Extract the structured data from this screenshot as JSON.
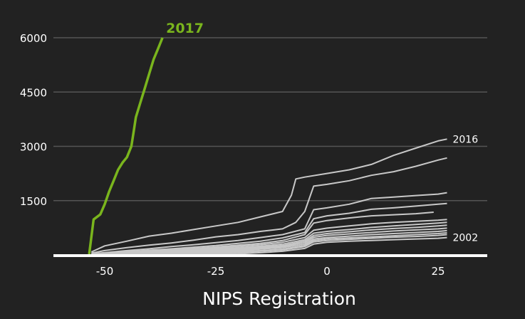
{
  "chart_data": {
    "type": "line",
    "title": "",
    "xlabel": "NIPS Registration",
    "ylabel": "",
    "xlim": [
      -63,
      36
    ],
    "ylim": [
      0,
      6200
    ],
    "x_ticks": [
      -50,
      -25,
      0,
      25
    ],
    "y_ticks": [
      1500,
      3000,
      4500,
      6000
    ],
    "x_tick_labels": [
      "-50",
      "-25",
      "0",
      "25"
    ],
    "y_tick_labels": [
      "1500",
      "3000",
      "4500",
      "6000"
    ],
    "grid": "horizontal",
    "legend": "none",
    "colors": {
      "background": "#222222",
      "highlight": "#7ab51d",
      "series": "#c8c8c8",
      "grid": "#555555",
      "baseline": "#ffffff"
    },
    "highlight_series": {
      "name": "2017",
      "color": "#7ab51d",
      "x": [
        -53.5,
        -52.5,
        -51,
        -50,
        -49,
        -48,
        -47,
        -46,
        -45,
        -44,
        -43.5,
        -43,
        -42,
        -41,
        -40,
        -39,
        -38,
        -37
      ],
      "y": [
        20,
        980,
        1120,
        1400,
        1750,
        2050,
        2350,
        2550,
        2700,
        3000,
        3400,
        3800,
        4200,
        4600,
        5000,
        5400,
        5700,
        6000
      ]
    },
    "series": [
      {
        "name": "2016",
        "x": [
          -53,
          -50,
          -45,
          -40,
          -35,
          -30,
          -25,
          -20,
          -15,
          -10,
          -8,
          -7,
          -5,
          0,
          5,
          10,
          15,
          20,
          25,
          27
        ],
        "y": [
          80,
          250,
          380,
          520,
          600,
          700,
          800,
          900,
          1050,
          1200,
          1650,
          2100,
          2150,
          2250,
          2350,
          2500,
          2750,
          2950,
          3150,
          3200
        ]
      },
      {
        "x": [
          -53,
          -50,
          -45,
          -40,
          -35,
          -30,
          -25,
          -20,
          -15,
          -10,
          -7,
          -5,
          -3,
          0,
          5,
          10,
          15,
          20,
          25,
          27
        ],
        "y": [
          50,
          120,
          200,
          270,
          330,
          410,
          500,
          560,
          650,
          720,
          900,
          1200,
          1900,
          1950,
          2050,
          2200,
          2300,
          2450,
          2620,
          2680
        ]
      },
      {
        "x": [
          -53,
          -45,
          -40,
          -35,
          -30,
          -25,
          -20,
          -15,
          -10,
          -5,
          -3,
          0,
          5,
          10,
          15,
          20,
          25,
          27
        ],
        "y": [
          30,
          120,
          170,
          230,
          280,
          340,
          400,
          480,
          560,
          720,
          1250,
          1300,
          1400,
          1560,
          1600,
          1640,
          1680,
          1720
        ]
      },
      {
        "x": [
          -53,
          -45,
          -35,
          -25,
          -15,
          -10,
          -5,
          -3,
          0,
          5,
          10,
          15,
          20,
          25,
          27
        ],
        "y": [
          20,
          90,
          170,
          260,
          380,
          470,
          620,
          1000,
          1080,
          1150,
          1260,
          1300,
          1350,
          1400,
          1420
        ]
      },
      {
        "x": [
          -53,
          -45,
          -35,
          -25,
          -15,
          -10,
          -5,
          -3,
          0,
          5,
          10,
          15,
          20,
          24
        ],
        "y": [
          20,
          70,
          140,
          220,
          320,
          400,
          560,
          880,
          950,
          1020,
          1080,
          1110,
          1140,
          1180
        ]
      },
      {
        "x": [
          -53,
          -45,
          -35,
          -25,
          -15,
          -10,
          -5,
          -3,
          0,
          5,
          10,
          15,
          20,
          25,
          27
        ],
        "y": [
          15,
          60,
          120,
          190,
          280,
          350,
          480,
          680,
          740,
          800,
          860,
          900,
          930,
          960,
          980
        ]
      },
      {
        "x": [
          -53,
          -45,
          -35,
          -25,
          -15,
          -10,
          -5,
          -3,
          0,
          5,
          10,
          15,
          20,
          25,
          27
        ],
        "y": [
          15,
          50,
          100,
          160,
          240,
          300,
          420,
          600,
          650,
          700,
          760,
          800,
          840,
          880,
          900
        ]
      },
      {
        "x": [
          -53,
          -45,
          -35,
          -25,
          -15,
          -10,
          -5,
          -3,
          0,
          5,
          10,
          15,
          20,
          25,
          27
        ],
        "y": [
          10,
          40,
          80,
          140,
          210,
          260,
          380,
          540,
          590,
          640,
          690,
          730,
          760,
          800,
          820
        ]
      },
      {
        "x": [
          -53,
          -45,
          -35,
          -25,
          -15,
          -10,
          -5,
          -3,
          0,
          5,
          10,
          15,
          20,
          25,
          27
        ],
        "y": [
          10,
          35,
          70,
          120,
          180,
          230,
          340,
          490,
          540,
          580,
          620,
          660,
          690,
          720,
          740
        ]
      },
      {
        "x": [
          -50,
          -40,
          -30,
          -20,
          -15,
          -10,
          -5,
          -3,
          0,
          5,
          10,
          15,
          20,
          25,
          27
        ],
        "y": [
          10,
          30,
          70,
          120,
          160,
          200,
          300,
          440,
          480,
          520,
          560,
          590,
          620,
          650,
          670
        ]
      },
      {
        "x": [
          -45,
          -35,
          -25,
          -15,
          -10,
          -5,
          -3,
          0,
          5,
          10,
          15,
          20,
          25,
          27
        ],
        "y": [
          10,
          30,
          70,
          120,
          160,
          260,
          400,
          440,
          470,
          500,
          530,
          560,
          590,
          610
        ]
      },
      {
        "x": [
          -40,
          -30,
          -20,
          -15,
          -10,
          -5,
          -3,
          0,
          5,
          10,
          15,
          20,
          25,
          27
        ],
        "y": [
          10,
          30,
          60,
          100,
          140,
          230,
          360,
          400,
          430,
          460,
          490,
          510,
          540,
          560
        ]
      },
      {
        "name": "2002",
        "x": [
          -30,
          -20,
          -15,
          -10,
          -5,
          -3,
          0,
          5,
          10,
          15,
          20,
          25,
          27
        ],
        "y": [
          10,
          30,
          60,
          100,
          180,
          300,
          350,
          380,
          400,
          420,
          440,
          460,
          480
        ]
      }
    ]
  }
}
